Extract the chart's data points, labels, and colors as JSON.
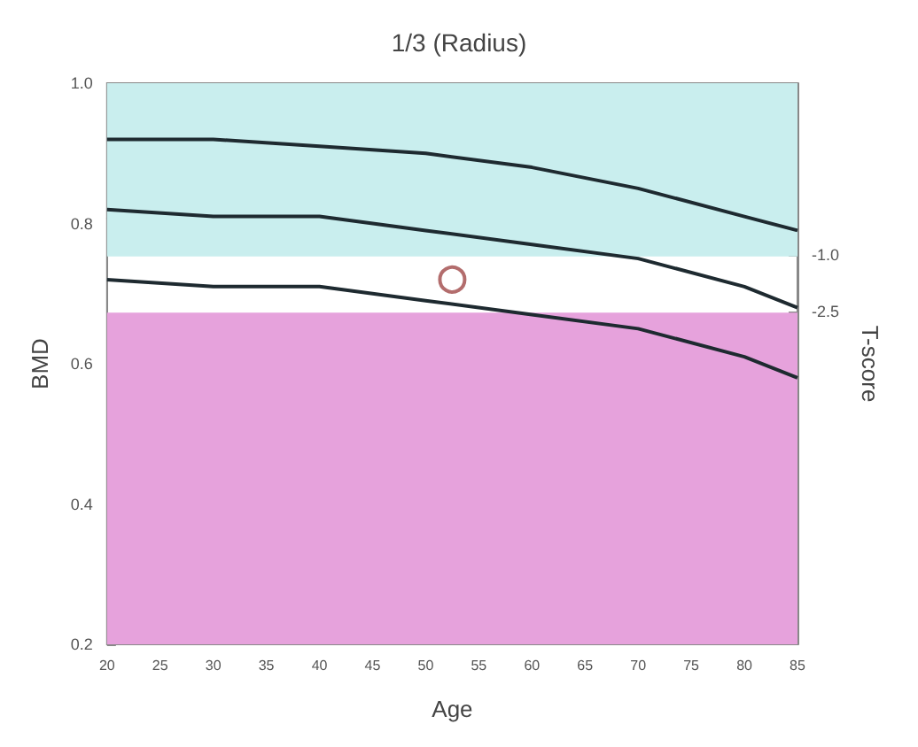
{
  "chart_data": {
    "type": "line",
    "title": "1/3 (Radius)",
    "xlabel": "Age",
    "ylabel": "BMD",
    "y2label": "T-score",
    "x": [
      20,
      30,
      40,
      50,
      60,
      70,
      80,
      85
    ],
    "series": [
      {
        "color": "#1e2a30",
        "values": [
          0.92,
          0.92,
          0.91,
          0.9,
          0.88,
          0.85,
          0.81,
          0.79
        ]
      },
      {
        "color": "#1e2a30",
        "values": [
          0.82,
          0.81,
          0.81,
          0.79,
          0.77,
          0.75,
          0.71,
          0.68
        ]
      },
      {
        "color": "#1e2a30",
        "values": [
          0.72,
          0.71,
          0.71,
          0.69,
          0.67,
          0.65,
          0.61,
          0.58
        ]
      },
      {
        "type": "scatter",
        "color": "#a04848",
        "marker": "circle",
        "x": [
          52.5
        ],
        "values": [
          0.72
        ]
      }
    ],
    "xlim": [
      20,
      85
    ],
    "xticks": [
      20,
      25,
      30,
      35,
      40,
      45,
      50,
      55,
      60,
      65,
      70,
      75,
      80,
      85
    ],
    "ylim": [
      0.2,
      1.0
    ],
    "yticks": [
      {
        "value": 0.2,
        "label": "0.2"
      },
      {
        "value": 0.4,
        "label": "0.4"
      },
      {
        "value": 0.6,
        "label": "0.6"
      },
      {
        "value": 0.8,
        "label": "0.8"
      },
      {
        "value": 1.0,
        "label": "1.0"
      }
    ],
    "y2lim": [
      -11.4,
      3.6
    ],
    "y2ticks": [
      {
        "value": -1,
        "label": "-1.0"
      },
      {
        "value": -2.5,
        "label": "-2.5"
      }
    ],
    "bands": [
      {
        "axis": "y",
        "from": 0.753,
        "to": 1.0,
        "color": "#c9eeee"
      },
      {
        "axis": "y",
        "from": 0.2,
        "to": 0.673,
        "color": "#e6a2dc"
      }
    ],
    "grid": false,
    "marker": "none",
    "line_style": "solid"
  }
}
